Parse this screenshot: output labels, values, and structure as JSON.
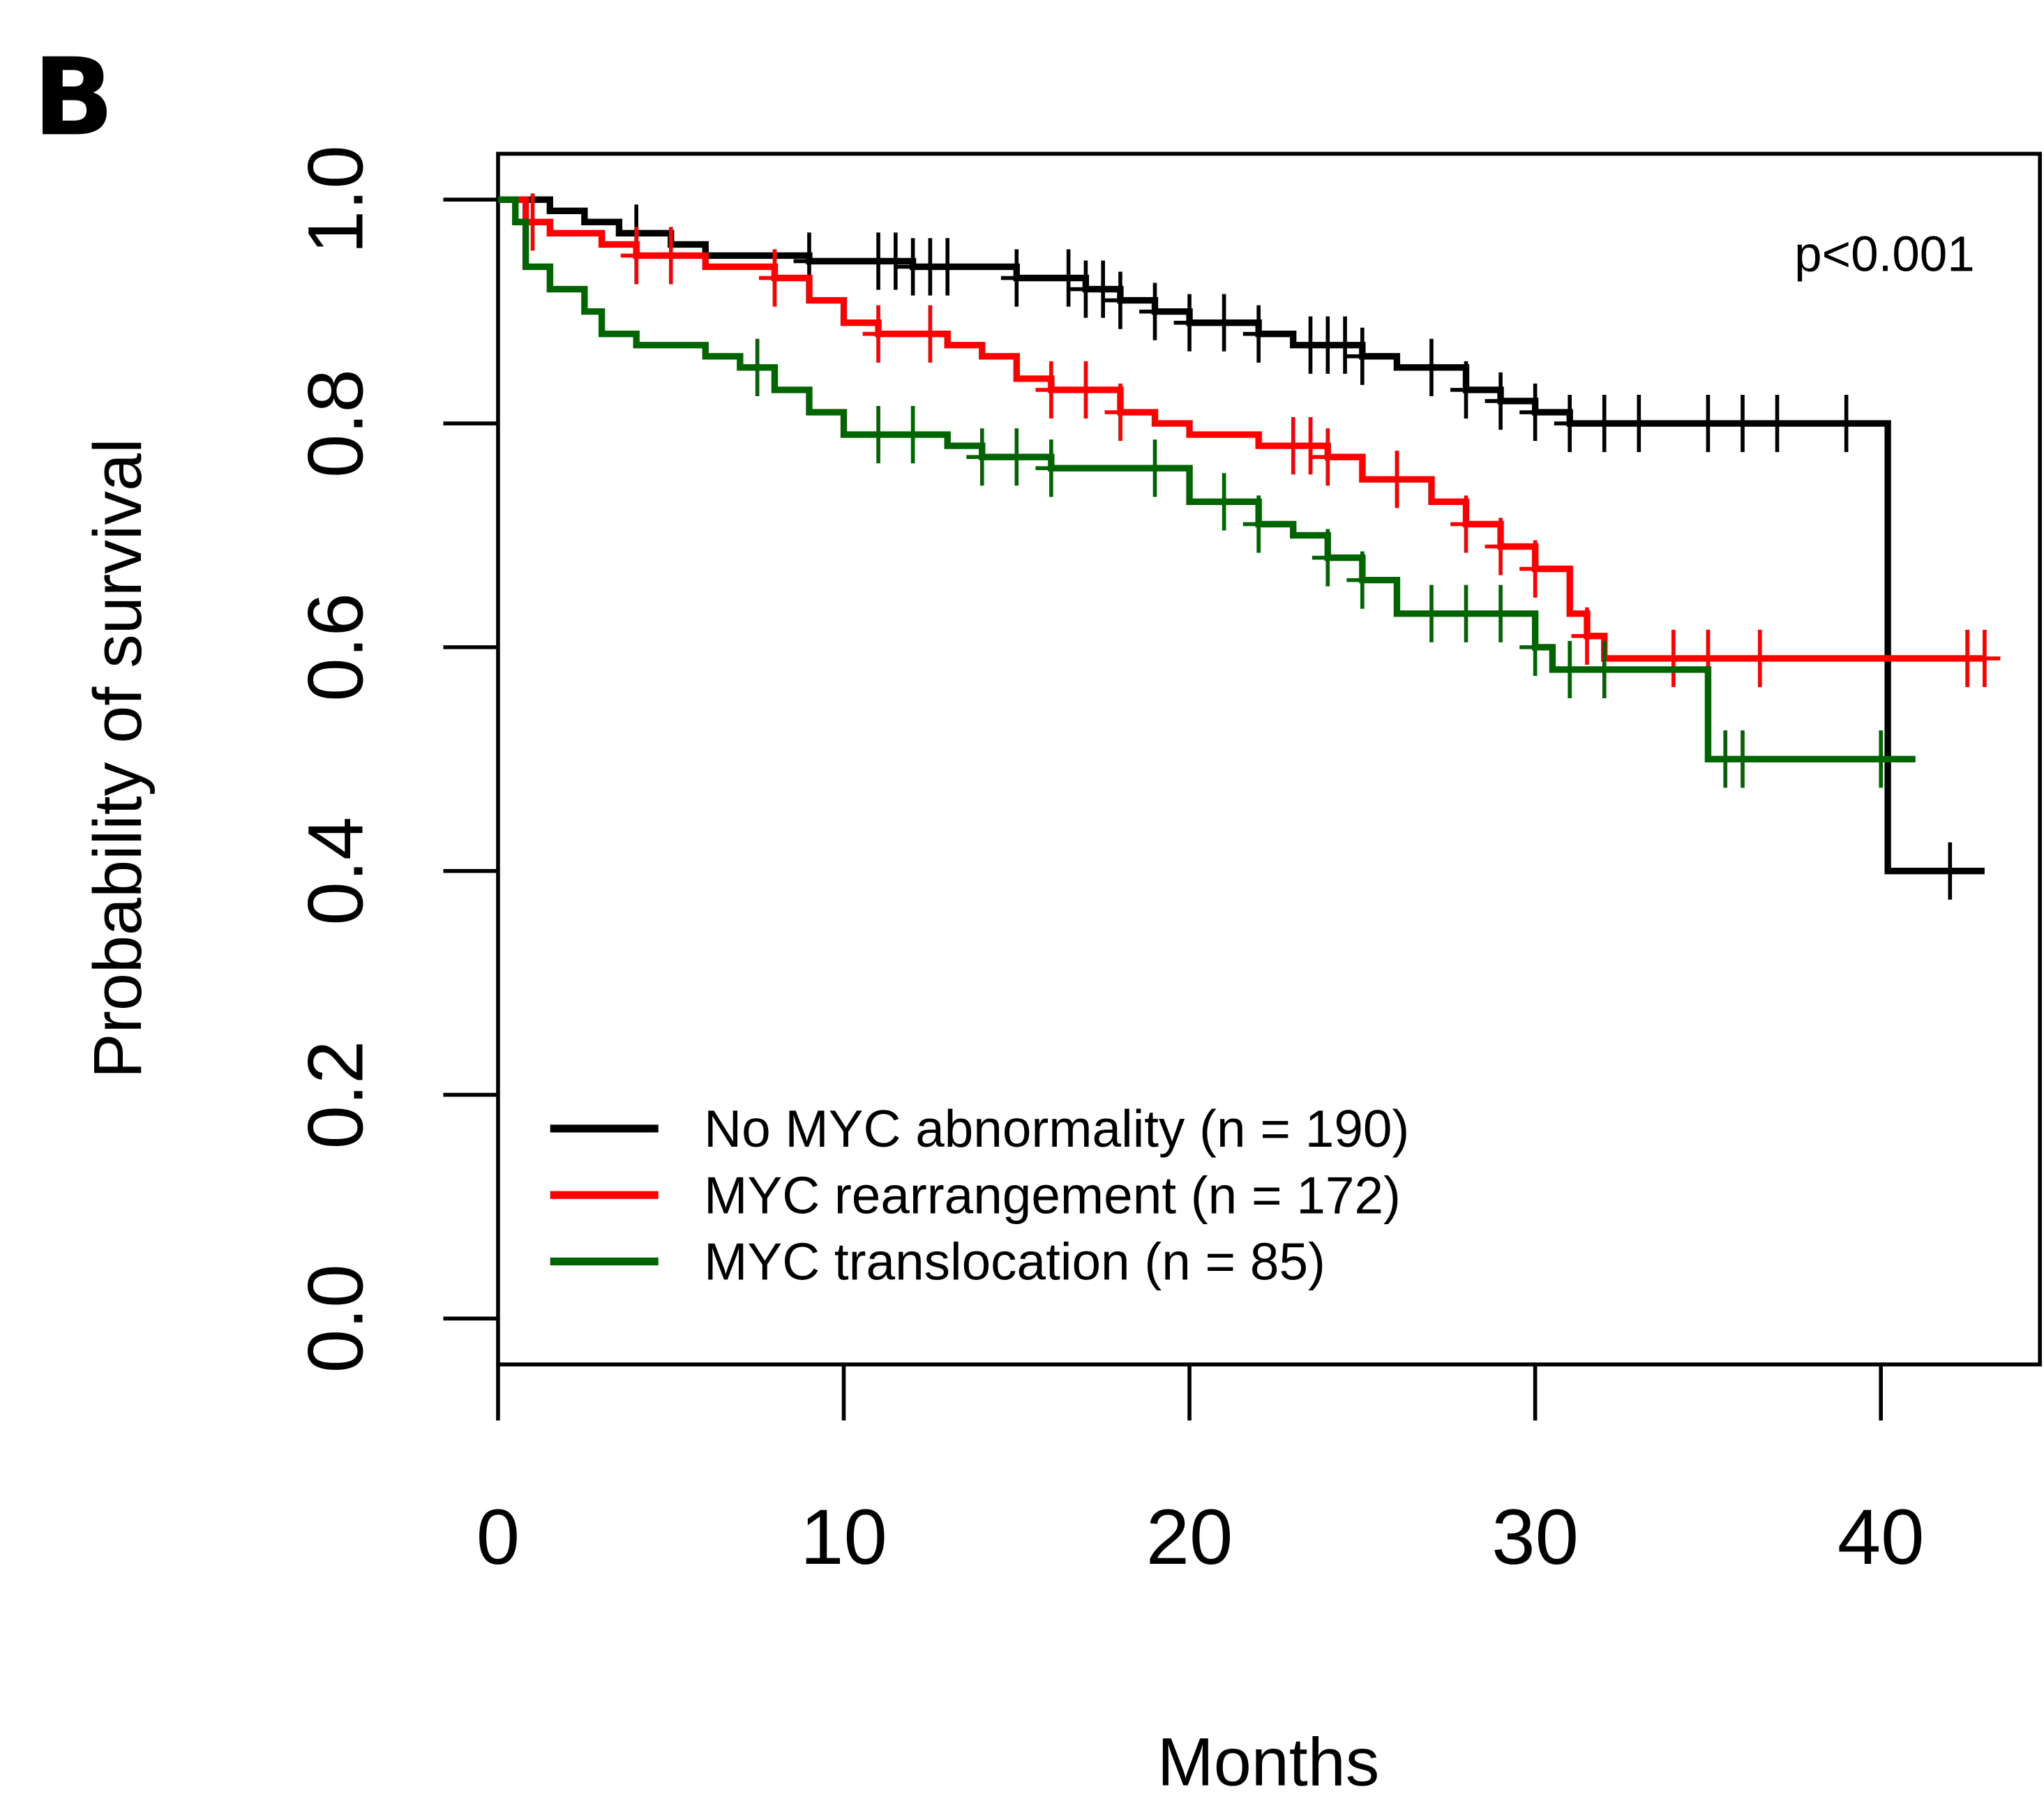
{
  "panel_label": "B",
  "chart_data": {
    "type": "survival",
    "ylabel": "Probability of survival",
    "xlabel": "Months",
    "annotation": "p<0.001",
    "xlim": [
      0,
      44.6
    ],
    "ylim": [
      -0.041,
      1.041
    ],
    "xticks": [
      0,
      10,
      20,
      30,
      40
    ],
    "yticks": [
      {
        "value": 0,
        "label": "0.0"
      },
      0.2,
      0.4,
      0.6,
      0.8,
      {
        "value": 1,
        "label": "1.0"
      }
    ],
    "legend": "bottomleft",
    "series": [
      {
        "name": "No MYC abnormality (n = 190)",
        "color": "#000000",
        "x": [
          0,
          1.5,
          2.5,
          3.5,
          5,
          6,
          9,
          12,
          15,
          17,
          18,
          19,
          20,
          22,
          23,
          25,
          26,
          28,
          29,
          30,
          31,
          40.2,
          43
        ],
        "values": [
          1.0,
          0.99,
          0.98,
          0.97,
          0.96,
          0.95,
          0.945,
          0.94,
          0.93,
          0.92,
          0.91,
          0.9,
          0.89,
          0.88,
          0.87,
          0.86,
          0.85,
          0.83,
          0.82,
          0.81,
          0.8,
          0.4,
          0.4
        ],
        "censored": [
          4,
          9,
          11,
          11.5,
          12,
          12.5,
          13,
          15,
          16.5,
          17,
          17.5,
          18,
          19,
          20,
          21,
          22,
          23.5,
          24,
          24.5,
          25,
          27,
          28,
          29,
          30,
          31,
          32,
          33,
          35,
          36,
          37,
          39,
          42
        ]
      },
      {
        "name": "MYC rearrangement (n = 172)",
        "color": "#ff0000",
        "x": [
          0,
          0.8,
          1.5,
          3,
          4,
          6,
          8,
          9,
          10,
          11,
          13,
          14,
          15,
          16,
          18,
          19,
          20,
          22,
          24,
          25,
          27,
          28,
          29,
          30,
          31,
          31.5,
          32,
          43
        ],
        "values": [
          1.0,
          0.98,
          0.97,
          0.96,
          0.95,
          0.94,
          0.93,
          0.91,
          0.89,
          0.88,
          0.87,
          0.86,
          0.84,
          0.83,
          0.81,
          0.8,
          0.79,
          0.78,
          0.77,
          0.75,
          0.73,
          0.71,
          0.69,
          0.67,
          0.63,
          0.61,
          0.59,
          0.59
        ],
        "censored": [
          1,
          4,
          5,
          8,
          11,
          12.5,
          16,
          17,
          18,
          23,
          23.5,
          24,
          26,
          28,
          29,
          30,
          31.5,
          34,
          35,
          36.5,
          42.5,
          43
        ]
      },
      {
        "name": "MYC translocation (n = 85)",
        "color": "#006400",
        "x": [
          0,
          0.5,
          0.8,
          1.5,
          2.5,
          3,
          4,
          6,
          7,
          8,
          9,
          10,
          13,
          14,
          16,
          20,
          22,
          23,
          24,
          25,
          26,
          30,
          30.5,
          35,
          41
        ],
        "values": [
          1.0,
          0.98,
          0.94,
          0.92,
          0.9,
          0.88,
          0.87,
          0.86,
          0.85,
          0.83,
          0.81,
          0.79,
          0.78,
          0.77,
          0.76,
          0.73,
          0.71,
          0.7,
          0.68,
          0.66,
          0.63,
          0.6,
          0.58,
          0.5,
          0.5
        ],
        "censored": [
          7.5,
          11,
          12,
          14,
          15,
          16,
          19,
          21,
          22,
          24,
          25,
          27,
          28,
          29,
          30,
          31,
          32,
          35.5,
          36,
          40
        ]
      }
    ]
  }
}
